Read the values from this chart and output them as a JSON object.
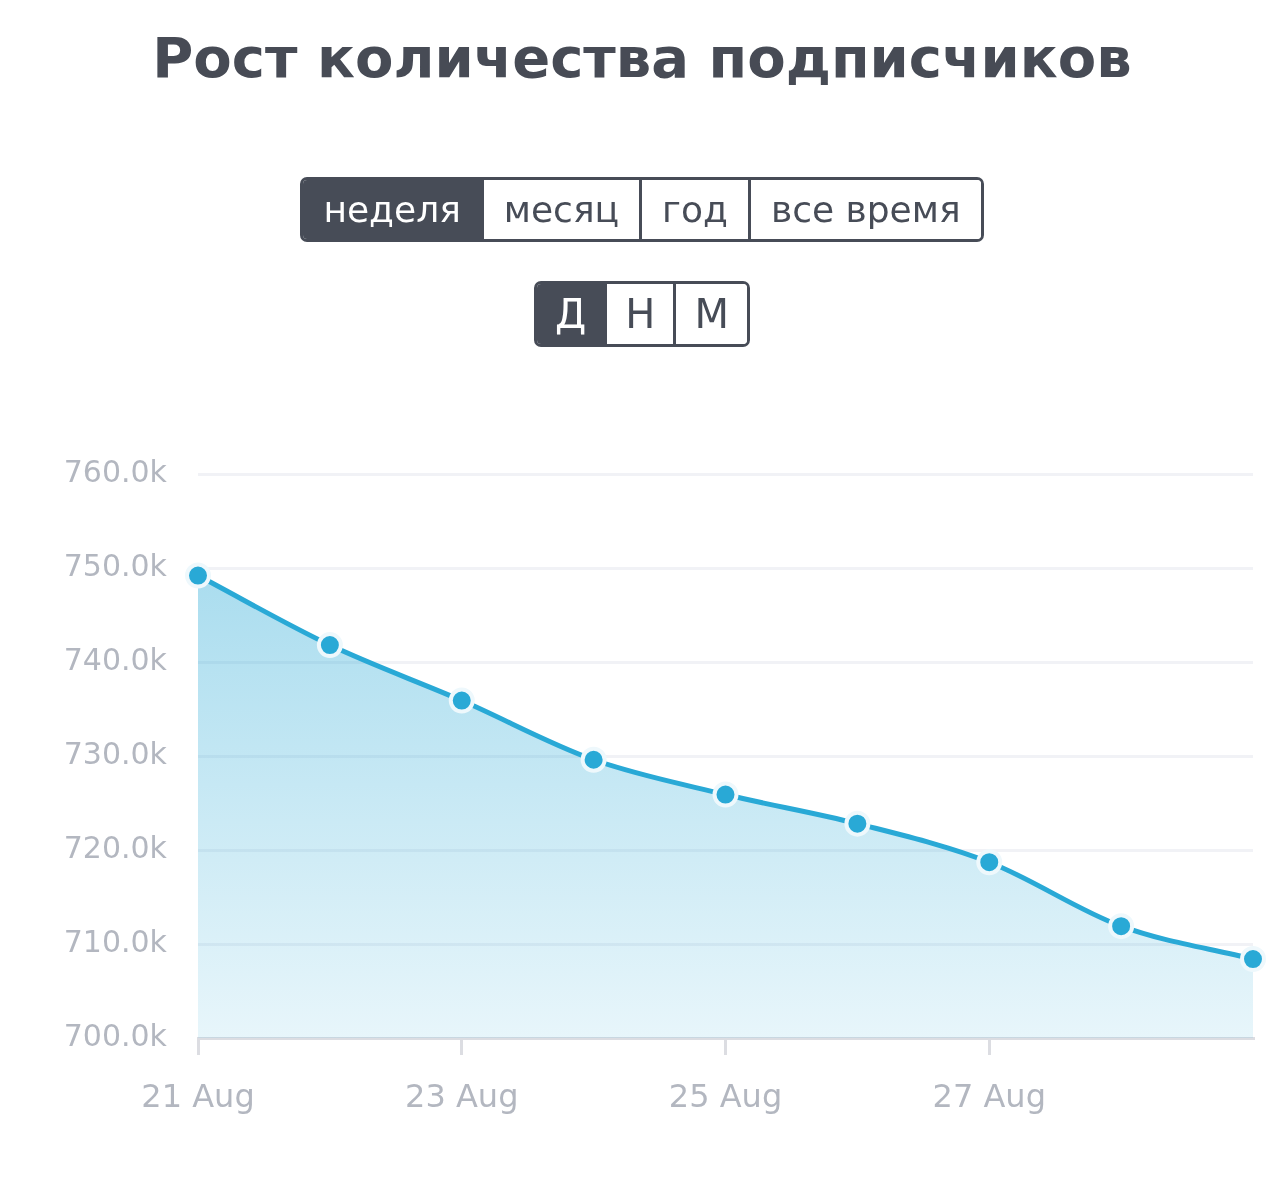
{
  "chart_data": {
    "type": "area",
    "title": "Рост количества подписчиков",
    "annotations": [
      "неделя",
      "месяц",
      "год",
      "все время",
      "Д",
      "Н",
      "М"
    ],
    "categories": [
      "21 Aug",
      null,
      "23 Aug",
      null,
      "25 Aug",
      null,
      "27 Aug",
      null,
      null
    ],
    "values": [
      749.2,
      741.8,
      735.9,
      729.6,
      725.9,
      722.8,
      718.7,
      711.9,
      708.4
    ],
    "color": "#29a9d6",
    "ylim": [
      700,
      760
    ],
    "yticks": [
      {
        "value": 700,
        "label": "700.0k"
      },
      {
        "value": 710,
        "label": "710.0k"
      },
      {
        "value": 720,
        "label": "720.0k"
      },
      {
        "value": 730,
        "label": "730.0k"
      },
      {
        "value": 740,
        "label": "740.0k"
      },
      {
        "value": 750,
        "label": "750.0k"
      },
      {
        "value": 760,
        "label": "760.0k"
      }
    ],
    "grid": "y",
    "marker": "circle"
  }
}
